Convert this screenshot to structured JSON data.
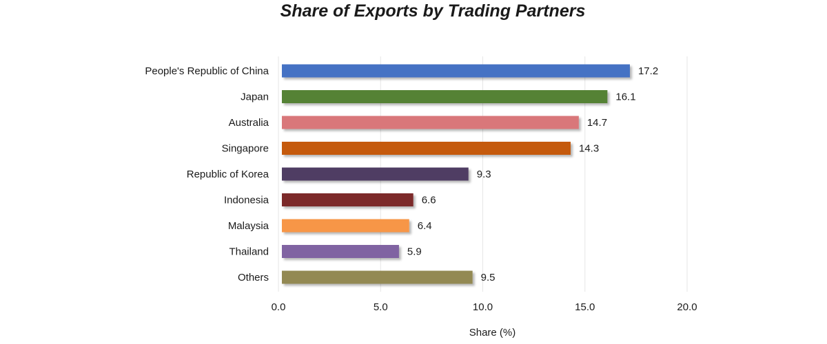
{
  "chart_data": {
    "type": "bar",
    "orientation": "horizontal",
    "title": "Share of Exports by Trading Partners",
    "xlabel": "Share (%)",
    "ylabel": "",
    "xlim": [
      0,
      20
    ],
    "x_ticks": [
      "0.0",
      "5.0",
      "10.0",
      "15.0",
      "20.0"
    ],
    "grid": "vertical",
    "legend": "none",
    "categories": [
      "People's Republic of China",
      "Japan",
      "Australia",
      "Singapore",
      "Republic of Korea",
      "Indonesia",
      "Malaysia",
      "Thailand",
      "Others"
    ],
    "values": [
      17.2,
      16.1,
      14.7,
      14.3,
      9.3,
      6.6,
      6.4,
      5.9,
      9.5
    ],
    "value_labels": [
      "17.2",
      "16.1",
      "14.7",
      "14.3",
      "9.3",
      "6.6",
      "6.4",
      "5.9",
      "9.5"
    ],
    "colors": [
      "#4472C4",
      "#548235",
      "#D9777A",
      "#C55A11",
      "#4F3D63",
      "#7B2C2C",
      "#F79646",
      "#8064A2",
      "#938953"
    ]
  }
}
